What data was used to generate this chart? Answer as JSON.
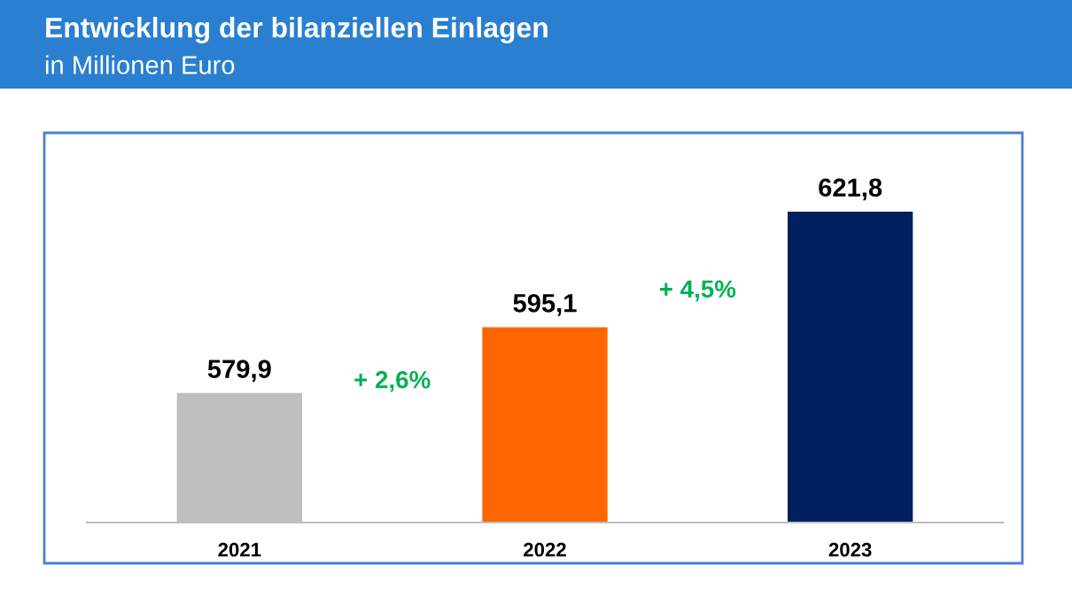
{
  "chart_data": {
    "type": "bar",
    "title": "Entwicklung der bilanziellen Einlagen",
    "subtitle": "in Millionen Euro",
    "categories": [
      "2021",
      "2022",
      "2023"
    ],
    "values": [
      579.9,
      595.1,
      621.8
    ],
    "colors": [
      "#bfbfbf",
      "#ff6600",
      "#002060"
    ],
    "value_labels": [
      "579,9",
      "595,1",
      "621,8"
    ],
    "annotations": [
      "+ 2,6%",
      "+ 4,5%"
    ],
    "ylim": [
      550,
      640
    ],
    "tick_labels": "x",
    "grid": false,
    "legend": false
  }
}
